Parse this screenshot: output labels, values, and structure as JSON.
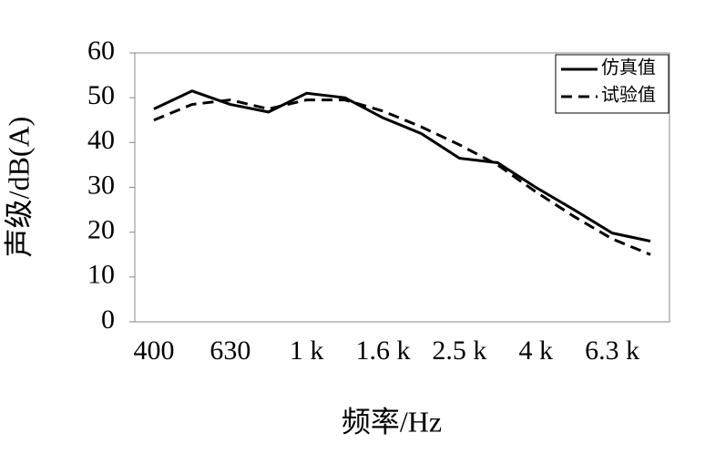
{
  "chart_data": {
    "type": "line",
    "categories": [
      "400",
      null,
      "630",
      null,
      "1 k",
      null,
      "1.6 k",
      null,
      "2.5 k",
      null,
      "4 k",
      null,
      "6.3 k",
      null
    ],
    "series": [
      {
        "name": "仿真值",
        "color": "#000000",
        "style": "solid",
        "values": [
          47.5,
          51.5,
          48.5,
          46.8,
          51,
          50,
          45.5,
          42,
          36.5,
          35.5,
          30,
          25,
          19.8,
          18
        ]
      },
      {
        "name": "试验值",
        "color": "#000000",
        "style": "dashed",
        "values": [
          45,
          48.5,
          49.5,
          47.5,
          49.5,
          49.5,
          47,
          43.5,
          39.5,
          35,
          29,
          23.5,
          18.5,
          15
        ]
      }
    ],
    "xlabel": "频率/Hz",
    "ylabel": "声级/dB(A)",
    "ylim": [
      0,
      60
    ],
    "yticks": [
      0,
      10,
      20,
      30,
      40,
      50,
      60
    ],
    "grid": false,
    "legend": "upper right"
  }
}
